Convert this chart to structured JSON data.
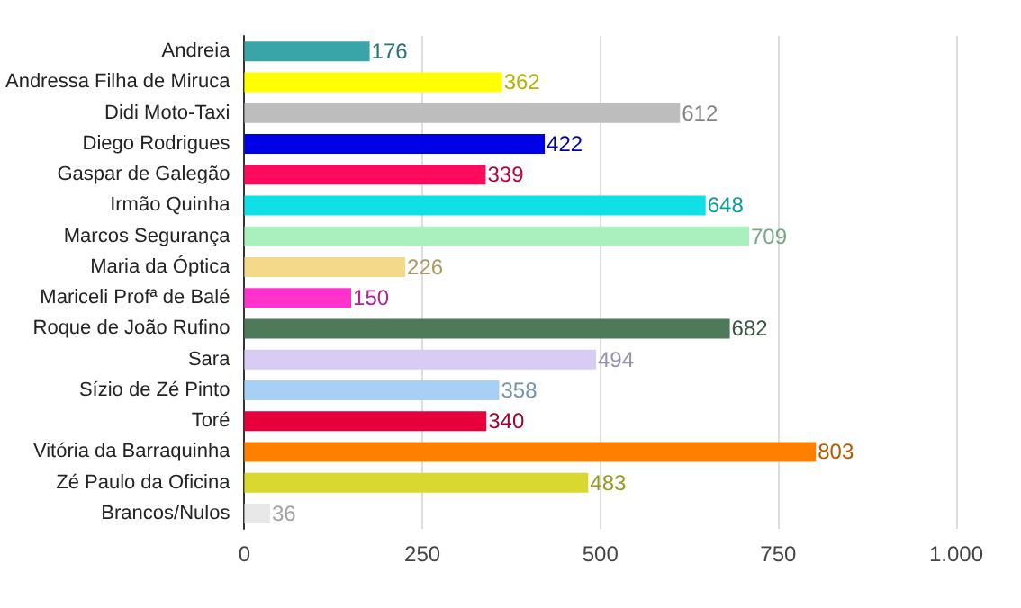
{
  "chart_data": {
    "type": "bar",
    "orientation": "horizontal",
    "categories": [
      "Andreia",
      "Andressa Filha de Miruca",
      "Didi Moto-Taxi",
      "Diego Rodrigues",
      "Gaspar de Galegão",
      "Irmão Quinha",
      "Marcos Segurança",
      "Maria da Óptica",
      "Mariceli Profª de Balé",
      "Roque de João Rufino",
      "Sara",
      "Sízio de Zé Pinto",
      "Toré",
      "Vitória da Barraquinha",
      "Zé Paulo da Oficina",
      "Brancos/Nulos"
    ],
    "values": [
      176,
      362,
      612,
      422,
      339,
      648,
      709,
      226,
      150,
      682,
      494,
      358,
      340,
      803,
      483,
      36
    ],
    "colors": [
      "#3aa5a8",
      "#ffff00",
      "#bdbdbd",
      "#0000e6",
      "#ff0a5c",
      "#10e0e6",
      "#a8f0bc",
      "#f5d98a",
      "#ff33cc",
      "#4f7a5a",
      "#d8ccf5",
      "#a8d0f5",
      "#e6003c",
      "#ff8000",
      "#d8d830",
      "#e8e8e8"
    ],
    "xlim": [
      0,
      1000
    ],
    "xticks": [
      0,
      250,
      500,
      750,
      {
        "value": 1000,
        "label": "1.000"
      }
    ],
    "grid": "x",
    "data_labels": true
  }
}
